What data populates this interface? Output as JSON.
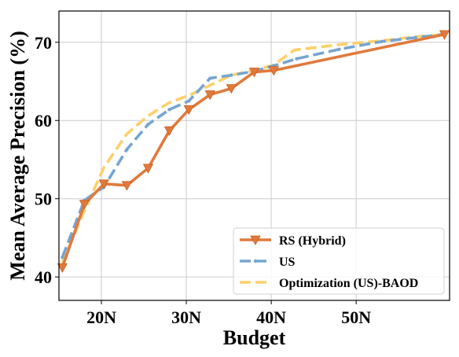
{
  "chart_data": {
    "type": "line",
    "xlabel": "Budget",
    "ylabel": "Mean Average Precision (%)",
    "xlim": [
      15,
      61
    ],
    "ylim": [
      37,
      74
    ],
    "xticks": [
      {
        "value": 20,
        "label": "20N"
      },
      {
        "value": 30,
        "label": "30N"
      },
      {
        "value": 40,
        "label": "40N"
      },
      {
        "value": 50,
        "label": "50N"
      }
    ],
    "yticks": [
      {
        "value": 40,
        "label": "40"
      },
      {
        "value": 50,
        "label": "50"
      },
      {
        "value": 60,
        "label": "60"
      },
      {
        "value": 70,
        "label": "70"
      }
    ],
    "grid": true,
    "legend_position": "lower-right",
    "series": [
      {
        "name": "RS (Hybrid)",
        "color": "#e07a3c",
        "marker": "triangle-down",
        "dash": "solid",
        "x": [
          15.4,
          18,
          20.3,
          23,
          25.5,
          28,
          30.3,
          32.8,
          35.3,
          38,
          40.3,
          60.4
        ],
        "y": [
          41.2,
          49.3,
          51.9,
          51.7,
          53.9,
          58.7,
          61.4,
          63.3,
          64.1,
          66.2,
          66.4,
          71.0
        ]
      },
      {
        "name": "US",
        "color": "#76a5d0",
        "marker": "dot",
        "dash": "dashed",
        "x": [
          15.4,
          18,
          20.3,
          23,
          25.5,
          28,
          30.3,
          32.8,
          35.3,
          38,
          40.3,
          43,
          48,
          53,
          57,
          60.4
        ],
        "y": [
          42.5,
          49.8,
          51.5,
          56.3,
          59.5,
          61.4,
          62.5,
          65.4,
          65.8,
          66.3,
          67.0,
          67.9,
          69.1,
          70.1,
          70.6,
          71.0
        ]
      },
      {
        "name": "Optimization (US)-BAOD",
        "color": "#fcd06a",
        "marker": "none",
        "dash": "dashed",
        "x": [
          15.4,
          17.8,
          20.3,
          23,
          25.5,
          28,
          30.3,
          33,
          35.3,
          38,
          40.3,
          42.7,
          48,
          53,
          57,
          60.4
        ],
        "y": [
          41.8,
          48.0,
          54.0,
          58.3,
          60.6,
          62.3,
          63.2,
          64.6,
          65.8,
          66.4,
          67.1,
          69.0,
          69.7,
          70.2,
          70.7,
          71.0
        ]
      }
    ]
  }
}
